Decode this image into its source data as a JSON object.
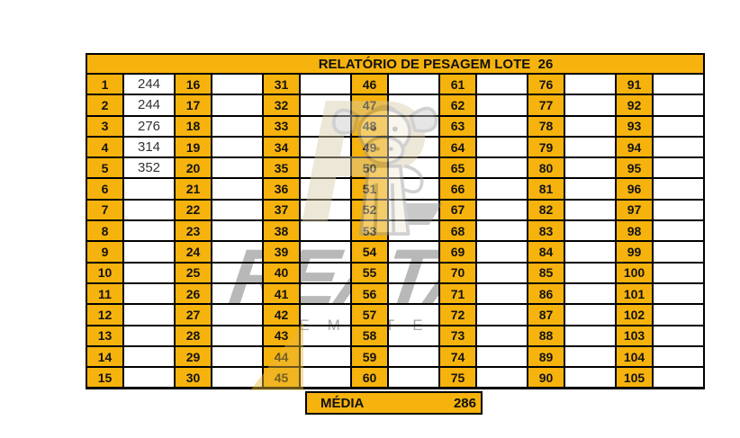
{
  "report": {
    "title": "RELATÓRIO DE PESAGEM LOTE  26",
    "media_label": "MÉDIA",
    "media_value": "286"
  },
  "grid": {
    "pairs": 7,
    "rows_per_pair": 15,
    "total_lots": 105,
    "column_starts": [
      1,
      16,
      31,
      46,
      61,
      76,
      91
    ],
    "weights": {
      "1": "244",
      "2": "244",
      "3": "276",
      "4": "314",
      "5": "352"
    }
  },
  "watermark": {
    "letter": "R",
    "brand": "REATA",
    "subbrand": "REMATES",
    "icon": "calf-logo"
  },
  "colors": {
    "cell_orange": "#F7B30D",
    "border": "#000000",
    "value_text": "#333333",
    "watermark_gray": "#8c8c8c",
    "watermark_beige": "#D8CCA8",
    "watermark_gold": "#E8B83A"
  }
}
